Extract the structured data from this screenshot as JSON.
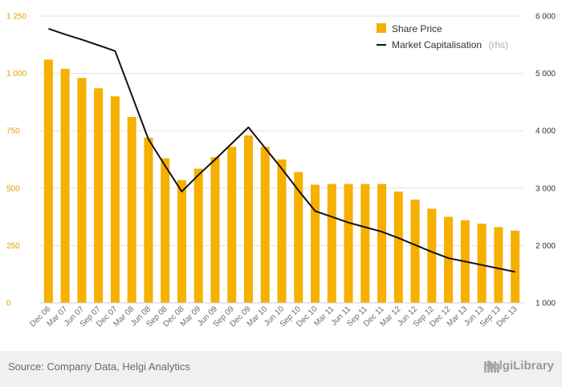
{
  "chart_data": {
    "type": "bar",
    "categories": [
      "Dec 06",
      "Mar 07",
      "Jun 07",
      "Sep 07",
      "Dec 07",
      "Mar 08",
      "Jun 08",
      "Sep 08",
      "Dec 08",
      "Mar 09",
      "Jun 09",
      "Sep 09",
      "Dec 09",
      "Mar 10",
      "Jun 10",
      "Sep 10",
      "Dec 10",
      "Mar 11",
      "Jun 11",
      "Sep 11",
      "Dec 11",
      "Mar 12",
      "Jun 12",
      "Sep 12",
      "Dec 12",
      "Mar 13",
      "Jun 13",
      "Sep 13",
      "Dec 13"
    ],
    "series": [
      {
        "name": "Share Price",
        "type": "bar",
        "axis": "left",
        "color": "#f5b000",
        "values": [
          1060,
          1020,
          980,
          935,
          900,
          810,
          720,
          630,
          535,
          585,
          635,
          680,
          730,
          680,
          625,
          570,
          515,
          518,
          518,
          518,
          518,
          485,
          450,
          410,
          375,
          360,
          345,
          330,
          315
        ]
      },
      {
        "name": "Market Capitalisation",
        "name_suffix": "(rhs)",
        "type": "line",
        "axis": "right",
        "color": "#111111",
        "values": [
          5780,
          5680,
          5590,
          5490,
          5390,
          4620,
          3850,
          3390,
          2940,
          3230,
          3500,
          3780,
          4060,
          3700,
          3340,
          2960,
          2600,
          2500,
          2400,
          2320,
          2240,
          2130,
          2010,
          1890,
          1780,
          1720,
          1660,
          1600,
          1540
        ]
      }
    ],
    "y_left": {
      "min": 0,
      "max": 1250,
      "ticks": [
        0,
        250,
        500,
        750,
        1000,
        1250
      ],
      "tick_labels": [
        "0",
        "250",
        "500",
        "750",
        "1 000",
        "1 250"
      ]
    },
    "y_right": {
      "min": 1000,
      "max": 6000,
      "ticks": [
        1000,
        2000,
        3000,
        4000,
        5000,
        6000
      ],
      "tick_labels": [
        "1 000",
        "2 000",
        "3 000",
        "4 000",
        "5 000",
        "6 000"
      ]
    },
    "grid": true,
    "legend": "top-right"
  },
  "footer": {
    "source": "Source: Company Data, Helgi Analytics",
    "brand": "HelgiLibrary"
  }
}
